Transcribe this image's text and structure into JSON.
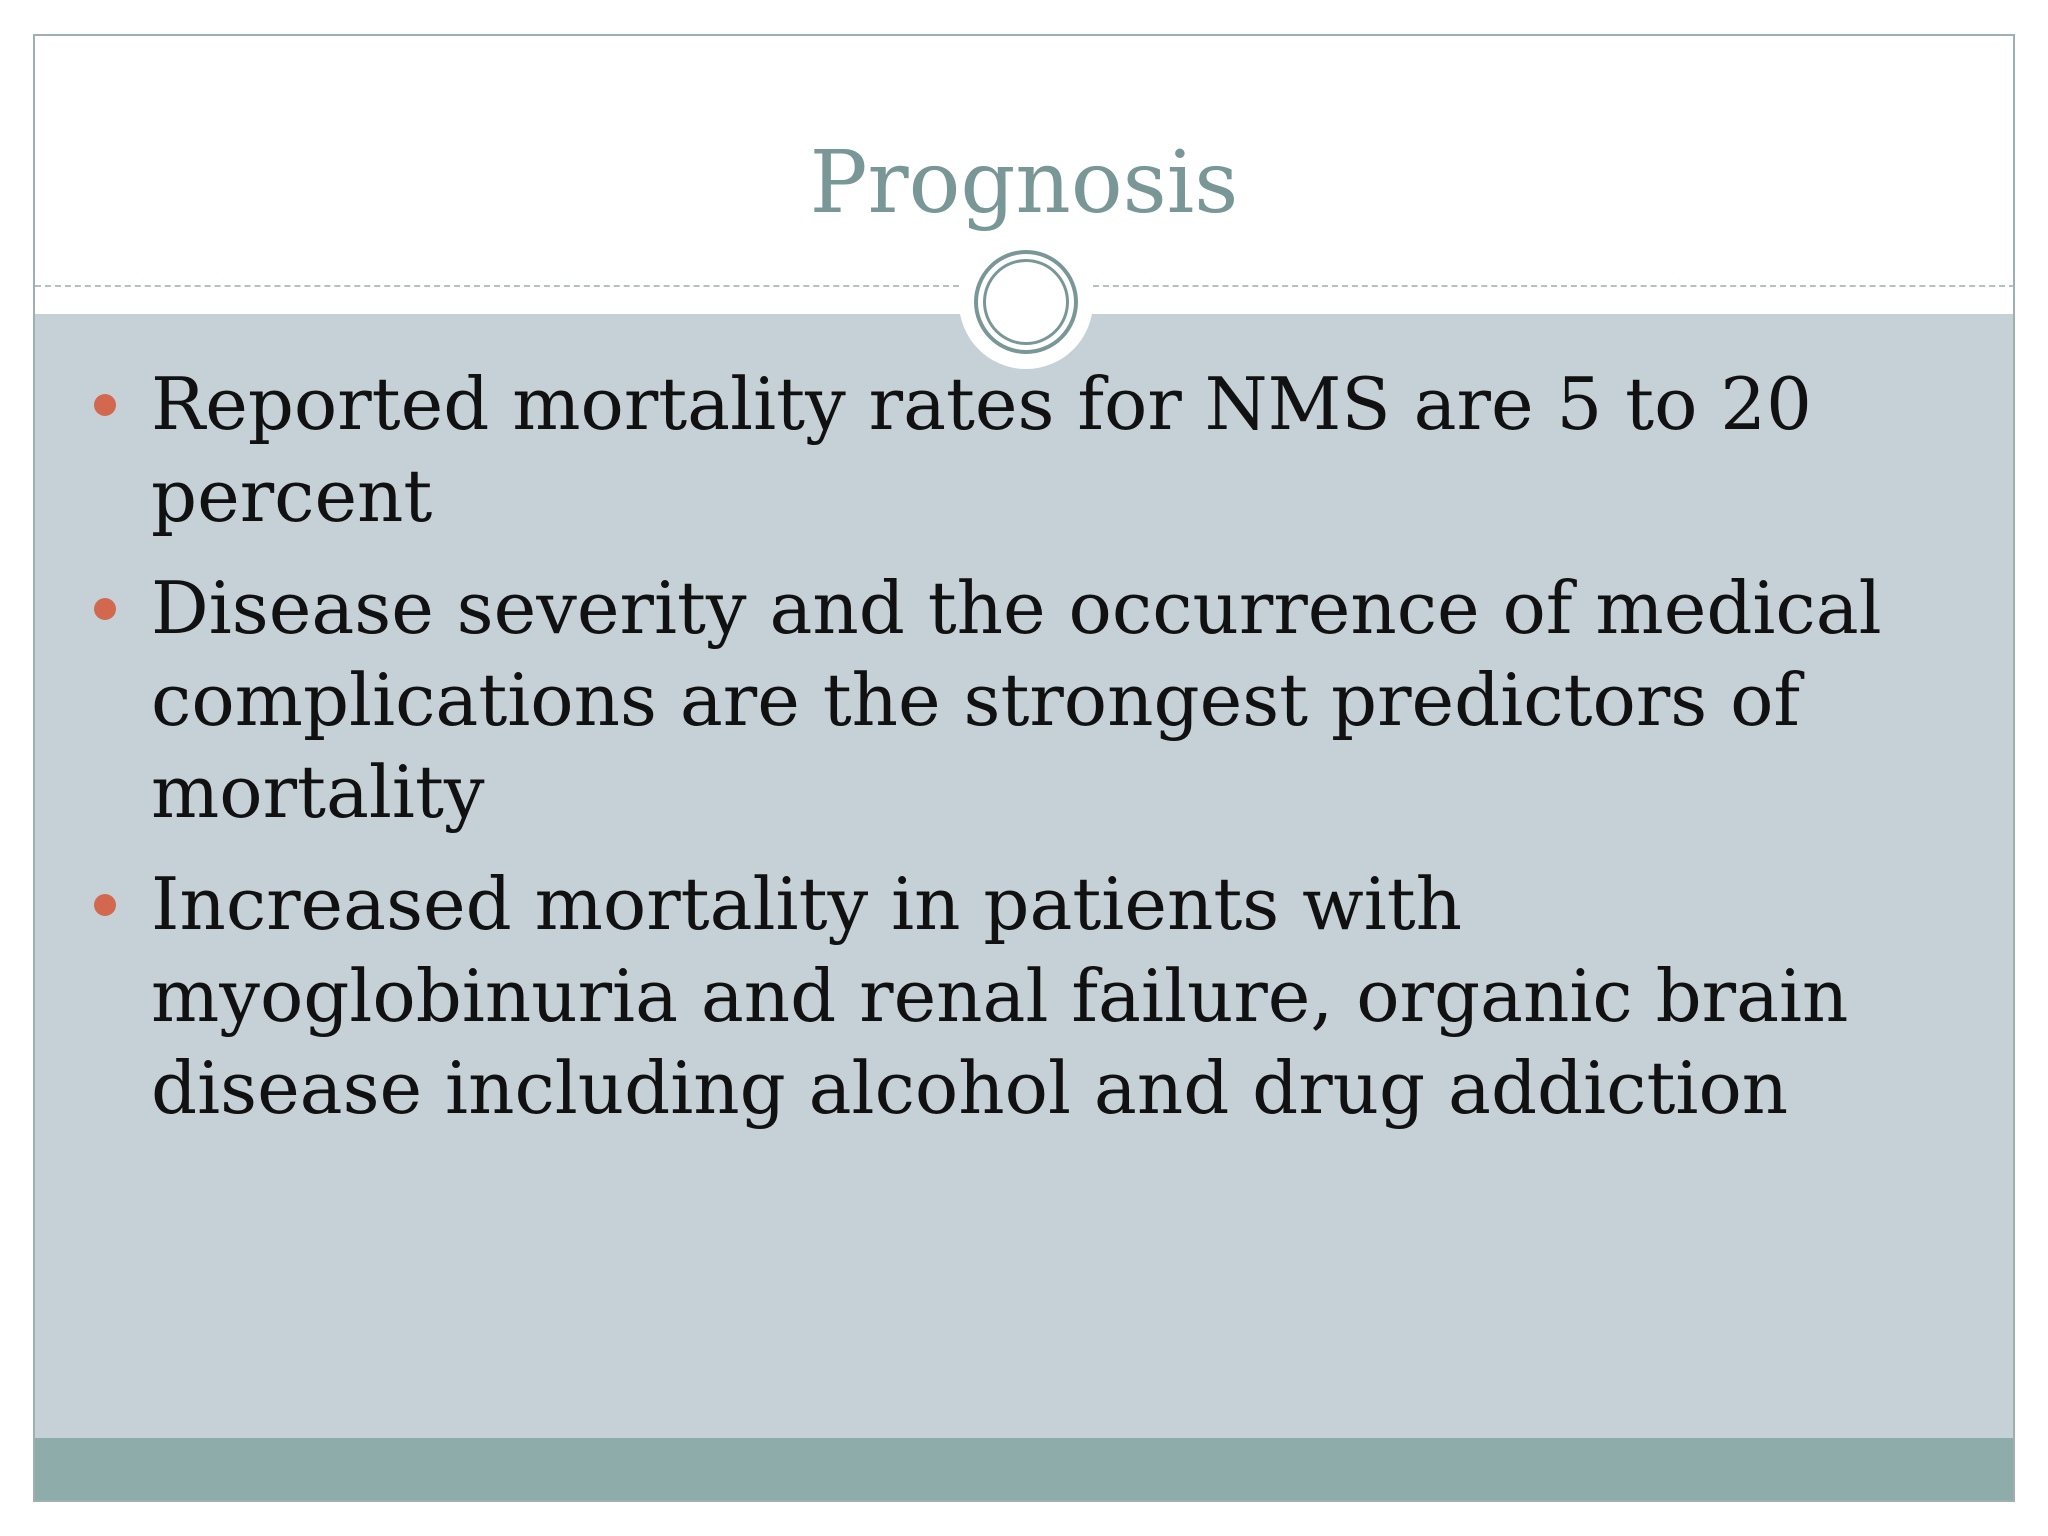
{
  "slide": {
    "title": "Prognosis",
    "bullets": [
      "Reported mortality rates for NMS are 5 to 20 percent",
      "Disease severity and the occurrence of medical complications are the strongest predictors of mortality",
      "Increased mortality in patients with myoglobinuria and renal failure, organic brain disease including alcohol and drug addiction"
    ]
  },
  "colors": {
    "title": "#7a9798",
    "body_background": "#c5d1d7",
    "bullet": "#d2694f",
    "footer_band": "#8dacaa"
  },
  "icons": {
    "emblem": "double-ring-circle-icon",
    "bullet": "filled-circle-icon"
  }
}
